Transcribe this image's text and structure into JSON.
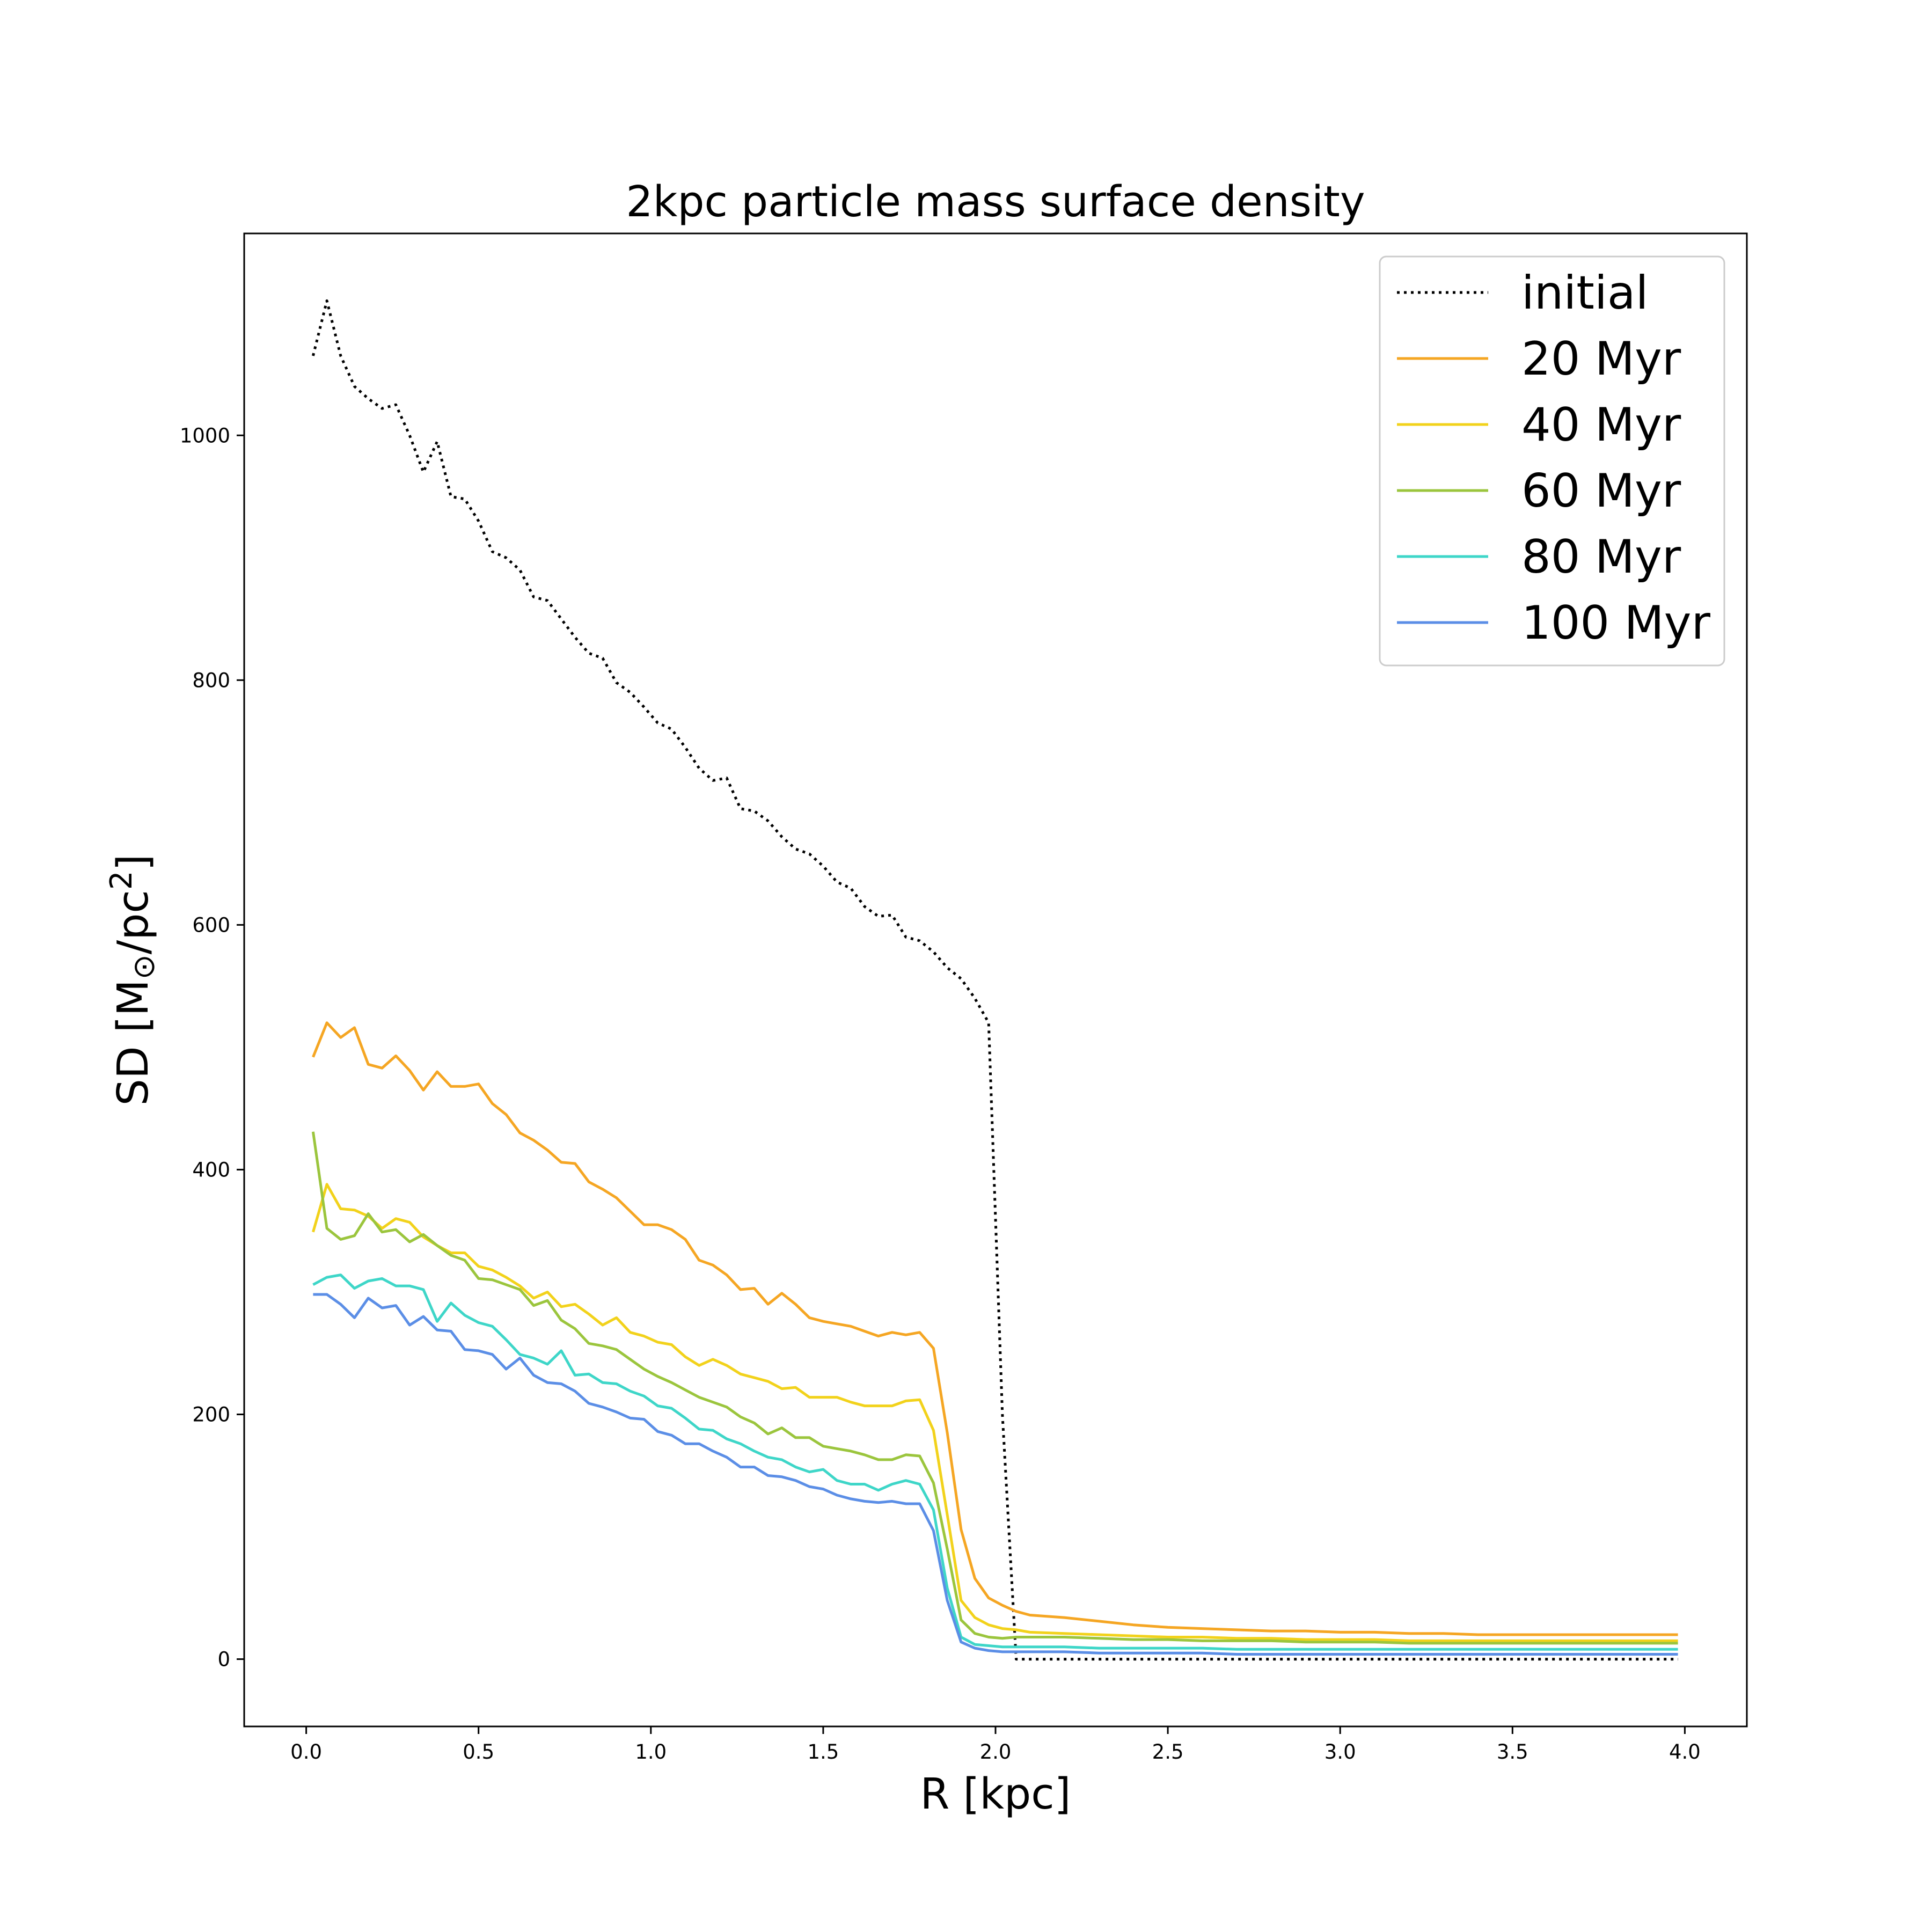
{
  "chart_data": {
    "type": "line",
    "title": "2kpc particle mass surface density",
    "xlabel": "R [kpc]",
    "ylabel_parts": {
      "pre": "SD [M",
      "sub": "⊙",
      "mid": "/pc",
      "sup": "2",
      "post": "]"
    },
    "xlim": [
      -0.18,
      4.18
    ],
    "ylim": [
      -55,
      1165
    ],
    "xticks": [
      0.0,
      0.5,
      1.0,
      1.5,
      2.0,
      2.5,
      3.0,
      3.5,
      4.0
    ],
    "xtick_labels": [
      "0.0",
      "0.5",
      "1.0",
      "1.5",
      "2.0",
      "2.5",
      "3.0",
      "3.5",
      "4.0"
    ],
    "yticks": [
      0,
      200,
      400,
      600,
      800,
      1000
    ],
    "ytick_labels": [
      "0",
      "200",
      "400",
      "600",
      "800",
      "1000"
    ],
    "grid": false,
    "legend_position": "top-right",
    "series": [
      {
        "name": "initial",
        "color": "#000000",
        "style": "dotted",
        "x": [
          0.02,
          0.06,
          0.1,
          0.14,
          0.18,
          0.22,
          0.26,
          0.3,
          0.34,
          0.38,
          0.42,
          0.46,
          0.5,
          0.54,
          0.58,
          0.62,
          0.66,
          0.7,
          0.74,
          0.78,
          0.82,
          0.86,
          0.9,
          0.94,
          0.98,
          1.02,
          1.06,
          1.1,
          1.14,
          1.18,
          1.22,
          1.26,
          1.3,
          1.34,
          1.38,
          1.42,
          1.46,
          1.5,
          1.54,
          1.58,
          1.62,
          1.66,
          1.7,
          1.74,
          1.78,
          1.82,
          1.86,
          1.9,
          1.94,
          1.98,
          2.02,
          2.06,
          2.1,
          2.5,
          3.0,
          3.5,
          3.98
        ],
        "y": [
          1065,
          1110,
          1065,
          1040,
          1030,
          1022,
          1025,
          1000,
          970,
          995,
          950,
          948,
          930,
          905,
          900,
          890,
          868,
          865,
          850,
          835,
          822,
          818,
          798,
          790,
          778,
          765,
          760,
          745,
          728,
          718,
          720,
          695,
          693,
          685,
          672,
          662,
          658,
          648,
          635,
          630,
          615,
          607,
          608,
          590,
          587,
          578,
          565,
          556,
          540,
          520,
          200,
          0,
          0,
          0,
          0,
          0,
          0
        ]
      },
      {
        "name": "20 Myr",
        "color": "#f5a623",
        "style": "solid",
        "x": [
          0.02,
          0.06,
          0.1,
          0.14,
          0.18,
          0.22,
          0.26,
          0.3,
          0.34,
          0.38,
          0.42,
          0.46,
          0.5,
          0.54,
          0.58,
          0.62,
          0.66,
          0.7,
          0.74,
          0.78,
          0.82,
          0.86,
          0.9,
          0.94,
          0.98,
          1.02,
          1.06,
          1.1,
          1.14,
          1.18,
          1.22,
          1.26,
          1.3,
          1.34,
          1.38,
          1.42,
          1.46,
          1.5,
          1.54,
          1.58,
          1.62,
          1.66,
          1.7,
          1.74,
          1.78,
          1.82,
          1.86,
          1.9,
          1.94,
          1.98,
          2.02,
          2.06,
          2.1,
          2.2,
          2.3,
          2.4,
          2.5,
          2.6,
          2.7,
          2.8,
          2.9,
          3.0,
          3.1,
          3.2,
          3.3,
          3.4,
          3.5,
          3.6,
          3.7,
          3.8,
          3.9,
          3.98
        ],
        "y": [
          492,
          520,
          508,
          516,
          486,
          483,
          493,
          481,
          465,
          480,
          468,
          468,
          470,
          454,
          445,
          430,
          424,
          416,
          406,
          405,
          390,
          384,
          377,
          366,
          355,
          355,
          351,
          343,
          326,
          322,
          314,
          302,
          303,
          290,
          299,
          290,
          279,
          276,
          274,
          272,
          268,
          264,
          267,
          265,
          267,
          254,
          185,
          106,
          66,
          50,
          44,
          39,
          36,
          34,
          31,
          28,
          26,
          25,
          24,
          23,
          23,
          22,
          22,
          21,
          21,
          20,
          20,
          20,
          20,
          20,
          20,
          20
        ]
      },
      {
        "name": "40 Myr",
        "color": "#f2d21b",
        "style": "solid",
        "x": [
          0.02,
          0.06,
          0.1,
          0.14,
          0.18,
          0.22,
          0.26,
          0.3,
          0.34,
          0.38,
          0.42,
          0.46,
          0.5,
          0.54,
          0.58,
          0.62,
          0.66,
          0.7,
          0.74,
          0.78,
          0.82,
          0.86,
          0.9,
          0.94,
          0.98,
          1.02,
          1.06,
          1.1,
          1.14,
          1.18,
          1.22,
          1.26,
          1.3,
          1.34,
          1.38,
          1.42,
          1.46,
          1.5,
          1.54,
          1.58,
          1.62,
          1.66,
          1.7,
          1.74,
          1.78,
          1.82,
          1.86,
          1.9,
          1.94,
          1.98,
          2.02,
          2.06,
          2.1,
          2.2,
          2.3,
          2.4,
          2.5,
          2.6,
          2.7,
          2.8,
          2.9,
          3.0,
          3.1,
          3.2,
          3.3,
          3.4,
          3.5,
          3.6,
          3.7,
          3.8,
          3.9,
          3.98
        ],
        "y": [
          349,
          388,
          368,
          367,
          362,
          352,
          360,
          357,
          345,
          338,
          332,
          332,
          321,
          318,
          312,
          305,
          295,
          300,
          288,
          290,
          282,
          273,
          279,
          267,
          264,
          259,
          257,
          247,
          240,
          245,
          240,
          233,
          230,
          227,
          221,
          222,
          214,
          214,
          214,
          210,
          207,
          207,
          207,
          211,
          212,
          187,
          118,
          48,
          34,
          28,
          25,
          24,
          22,
          21,
          20,
          19,
          18,
          18,
          17,
          17,
          16,
          16,
          16,
          15,
          15,
          15,
          15,
          15,
          15,
          15,
          15,
          15
        ]
      },
      {
        "name": "60 Myr",
        "color": "#9bc53d",
        "style": "solid",
        "x": [
          0.02,
          0.06,
          0.1,
          0.14,
          0.18,
          0.22,
          0.26,
          0.3,
          0.34,
          0.38,
          0.42,
          0.46,
          0.5,
          0.54,
          0.58,
          0.62,
          0.66,
          0.7,
          0.74,
          0.78,
          0.82,
          0.86,
          0.9,
          0.94,
          0.98,
          1.02,
          1.06,
          1.1,
          1.14,
          1.18,
          1.22,
          1.26,
          1.3,
          1.34,
          1.38,
          1.42,
          1.46,
          1.5,
          1.54,
          1.58,
          1.62,
          1.66,
          1.7,
          1.74,
          1.78,
          1.82,
          1.86,
          1.9,
          1.94,
          1.98,
          2.02,
          2.06,
          2.1,
          2.2,
          2.3,
          2.4,
          2.5,
          2.6,
          2.7,
          2.8,
          2.9,
          3.0,
          3.1,
          3.2,
          3.3,
          3.4,
          3.5,
          3.6,
          3.7,
          3.8,
          3.9,
          3.98
        ],
        "y": [
          431,
          352,
          343,
          346,
          364,
          349,
          351,
          341,
          347,
          338,
          330,
          326,
          311,
          310,
          306,
          302,
          289,
          293,
          277,
          270,
          258,
          256,
          253,
          245,
          237,
          231,
          226,
          220,
          214,
          210,
          206,
          198,
          193,
          184,
          189,
          181,
          181,
          174,
          172,
          170,
          167,
          163,
          163,
          167,
          166,
          144,
          90,
          32,
          21,
          18,
          17,
          18,
          18,
          18,
          17,
          16,
          16,
          15,
          15,
          15,
          14,
          14,
          14,
          13,
          13,
          13,
          13,
          13,
          13,
          13,
          13,
          13
        ]
      },
      {
        "name": "80 Myr",
        "color": "#3ed6c8",
        "style": "solid",
        "x": [
          0.02,
          0.06,
          0.1,
          0.14,
          0.18,
          0.22,
          0.26,
          0.3,
          0.34,
          0.38,
          0.42,
          0.46,
          0.5,
          0.54,
          0.58,
          0.62,
          0.66,
          0.7,
          0.74,
          0.78,
          0.82,
          0.86,
          0.9,
          0.94,
          0.98,
          1.02,
          1.06,
          1.1,
          1.14,
          1.18,
          1.22,
          1.26,
          1.3,
          1.34,
          1.38,
          1.42,
          1.46,
          1.5,
          1.54,
          1.58,
          1.62,
          1.66,
          1.7,
          1.74,
          1.78,
          1.82,
          1.86,
          1.9,
          1.94,
          1.98,
          2.02,
          2.06,
          2.1,
          2.2,
          2.3,
          2.4,
          2.5,
          2.6,
          2.7,
          2.8,
          2.9,
          3.0,
          3.1,
          3.2,
          3.3,
          3.4,
          3.5,
          3.6,
          3.7,
          3.8,
          3.9,
          3.98
        ],
        "y": [
          306,
          312,
          314,
          303,
          309,
          311,
          305,
          305,
          302,
          276,
          291,
          281,
          275,
          272,
          261,
          249,
          246,
          241,
          252,
          232,
          233,
          226,
          225,
          219,
          215,
          207,
          205,
          197,
          188,
          187,
          180,
          176,
          170,
          165,
          163,
          157,
          153,
          155,
          146,
          143,
          143,
          138,
          143,
          146,
          143,
          122,
          58,
          18,
          12,
          11,
          10,
          10,
          10,
          10,
          9,
          9,
          9,
          9,
          8,
          8,
          8,
          8,
          8,
          8,
          8,
          8,
          8,
          8,
          8,
          8,
          8,
          8
        ]
      },
      {
        "name": "100 Myr",
        "color": "#5b8ee6",
        "style": "solid",
        "x": [
          0.02,
          0.06,
          0.1,
          0.14,
          0.18,
          0.22,
          0.26,
          0.3,
          0.34,
          0.38,
          0.42,
          0.46,
          0.5,
          0.54,
          0.58,
          0.62,
          0.66,
          0.7,
          0.74,
          0.78,
          0.82,
          0.86,
          0.9,
          0.94,
          0.98,
          1.02,
          1.06,
          1.1,
          1.14,
          1.18,
          1.22,
          1.26,
          1.3,
          1.34,
          1.38,
          1.42,
          1.46,
          1.5,
          1.54,
          1.58,
          1.62,
          1.66,
          1.7,
          1.74,
          1.78,
          1.82,
          1.86,
          1.9,
          1.94,
          1.98,
          2.02,
          2.06,
          2.1,
          2.2,
          2.3,
          2.4,
          2.5,
          2.6,
          2.7,
          2.8,
          2.9,
          3.0,
          3.1,
          3.2,
          3.3,
          3.4,
          3.5,
          3.6,
          3.7,
          3.8,
          3.9,
          3.98
        ],
        "y": [
          298,
          298,
          290,
          279,
          295,
          287,
          289,
          273,
          280,
          269,
          268,
          253,
          252,
          249,
          237,
          246,
          232,
          226,
          225,
          219,
          209,
          206,
          202,
          197,
          196,
          186,
          183,
          176,
          176,
          170,
          165,
          157,
          157,
          150,
          149,
          146,
          141,
          139,
          134,
          131,
          129,
          128,
          129,
          127,
          127,
          105,
          48,
          14,
          9,
          7,
          6,
          6,
          6,
          6,
          5,
          5,
          5,
          5,
          4,
          4,
          4,
          4,
          4,
          4,
          4,
          4,
          4,
          4,
          4,
          4,
          4,
          4
        ]
      }
    ]
  }
}
